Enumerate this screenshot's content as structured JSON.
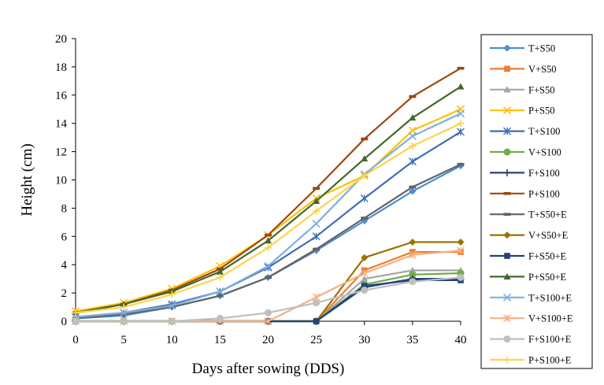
{
  "chart_data": {
    "type": "line",
    "title": "",
    "xlabel": "Days after sowing (DDS)",
    "ylabel": "Height (cm)",
    "x": [
      0,
      5,
      10,
      15,
      20,
      25,
      30,
      35,
      40
    ],
    "xlim": [
      0,
      40
    ],
    "ylim": [
      0,
      20
    ],
    "x_ticks": [
      0,
      5,
      10,
      15,
      20,
      25,
      30,
      35,
      40
    ],
    "y_ticks": [
      0,
      2,
      4,
      6,
      8,
      10,
      12,
      14,
      16,
      18,
      20
    ],
    "grid": false,
    "legend_position": "right",
    "series": [
      {
        "name": "T+S50",
        "color": "#4a8fd0",
        "marker": "diamond",
        "values": [
          0.2,
          0.4,
          1.0,
          1.8,
          3.1,
          5.0,
          7.1,
          9.2,
          11.0
        ]
      },
      {
        "name": "V+S50",
        "color": "#ed7d31",
        "marker": "square",
        "values": [
          0,
          0,
          0,
          0,
          0,
          0,
          3.6,
          4.9,
          4.9
        ]
      },
      {
        "name": "F+S50",
        "color": "#a5a5a5",
        "marker": "triangle",
        "values": [
          0,
          0,
          0,
          0,
          0,
          0,
          3.0,
          3.6,
          3.6
        ]
      },
      {
        "name": "P+S50",
        "color": "#ffc000",
        "marker": "x",
        "values": [
          0.7,
          1.3,
          2.3,
          3.9,
          6.1,
          8.7,
          10.3,
          13.5,
          15.0
        ]
      },
      {
        "name": "T+S100",
        "color": "#3e6db5",
        "marker": "asterisk",
        "values": [
          0.3,
          0.6,
          1.2,
          2.1,
          3.8,
          6.0,
          8.7,
          11.3,
          13.4
        ]
      },
      {
        "name": "V+S100",
        "color": "#70ad47",
        "marker": "circle",
        "values": [
          0,
          0,
          0,
          0,
          0,
          0,
          2.6,
          3.3,
          3.4
        ]
      },
      {
        "name": "F+S100",
        "color": "#264478",
        "marker": "plus",
        "values": [
          0,
          0,
          0,
          0,
          0,
          0,
          2.4,
          3.0,
          3.0
        ]
      },
      {
        "name": "P+S100",
        "color": "#9e480e",
        "marker": "dash",
        "values": [
          0.6,
          1.2,
          2.2,
          3.7,
          6.1,
          9.4,
          12.9,
          15.9,
          17.9
        ]
      },
      {
        "name": "T+S50+E",
        "color": "#636363",
        "marker": "dash",
        "values": [
          0.2,
          0.5,
          1.0,
          1.8,
          3.1,
          5.1,
          7.3,
          9.5,
          11.1
        ]
      },
      {
        "name": "V+S50+E",
        "color": "#997300",
        "marker": "diamond",
        "values": [
          0,
          0,
          0,
          0,
          0,
          0,
          4.5,
          5.6,
          5.6
        ]
      },
      {
        "name": "F+S50+E",
        "color": "#264478",
        "marker": "square",
        "values": [
          0,
          0,
          0,
          0,
          0,
          0,
          2.5,
          2.9,
          2.9
        ]
      },
      {
        "name": "P+S50+E",
        "color": "#43682b",
        "marker": "triangle",
        "values": [
          0.6,
          1.2,
          2.1,
          3.5,
          5.7,
          8.5,
          11.5,
          14.4,
          16.6
        ]
      },
      {
        "name": "T+S100+E",
        "color": "#7cafdd",
        "marker": "x",
        "values": [
          0.3,
          0.6,
          1.1,
          2.1,
          3.9,
          6.9,
          10.4,
          13.1,
          14.7
        ]
      },
      {
        "name": "V+S100+E",
        "color": "#f4b183",
        "marker": "asterisk",
        "values": [
          0,
          0,
          0,
          0,
          0,
          1.7,
          3.4,
          4.7,
          5.0
        ]
      },
      {
        "name": "F+S100+E",
        "color": "#bfbfbf",
        "marker": "circle",
        "values": [
          0,
          0,
          0,
          0.2,
          0.6,
          1.3,
          2.2,
          2.8,
          3.1
        ]
      },
      {
        "name": "P+S100+E",
        "color": "#ffd34d",
        "marker": "plus",
        "values": [
          0.6,
          1.0,
          1.9,
          3.1,
          5.2,
          7.8,
          10.3,
          12.4,
          14.0
        ]
      }
    ]
  }
}
